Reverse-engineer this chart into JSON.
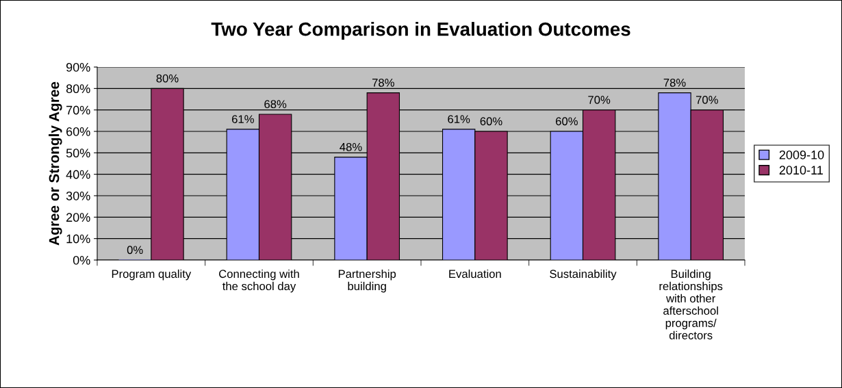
{
  "chart_data": {
    "type": "bar",
    "title": "Two Year Comparison in Evaluation Outcomes",
    "ylabel": "Agree or Strongly Agree",
    "categories": [
      "Program quality",
      "Connecting with the school day",
      "Partnership building",
      "Evaluation",
      "Sustainability",
      "Building relationships with other afterschool programs/ directors"
    ],
    "series": [
      {
        "name": "2009-10",
        "color": "#9999ff",
        "values": [
          0,
          61,
          48,
          61,
          60,
          78
        ],
        "value_labels": [
          "0%",
          "61%",
          "48%",
          "61%",
          "60%",
          "78%"
        ]
      },
      {
        "name": "2010-11",
        "color": "#993366",
        "values": [
          80,
          68,
          78,
          60,
          70,
          70
        ],
        "value_labels": [
          "80%",
          "68%",
          "78%",
          "60%",
          "70%",
          "70%"
        ]
      }
    ],
    "ylim": [
      0,
      90
    ],
    "yticks": [
      {
        "value": 0,
        "label": "0%"
      },
      {
        "value": 10,
        "label": "10%"
      },
      {
        "value": 20,
        "label": "20%"
      },
      {
        "value": 30,
        "label": "30%"
      },
      {
        "value": 40,
        "label": "40%"
      },
      {
        "value": 50,
        "label": "50%"
      },
      {
        "value": 60,
        "label": "60%"
      },
      {
        "value": 70,
        "label": "70%"
      },
      {
        "value": 80,
        "label": "80%"
      },
      {
        "value": 90,
        "label": "90%"
      }
    ],
    "grid": "y",
    "legend": "right"
  }
}
